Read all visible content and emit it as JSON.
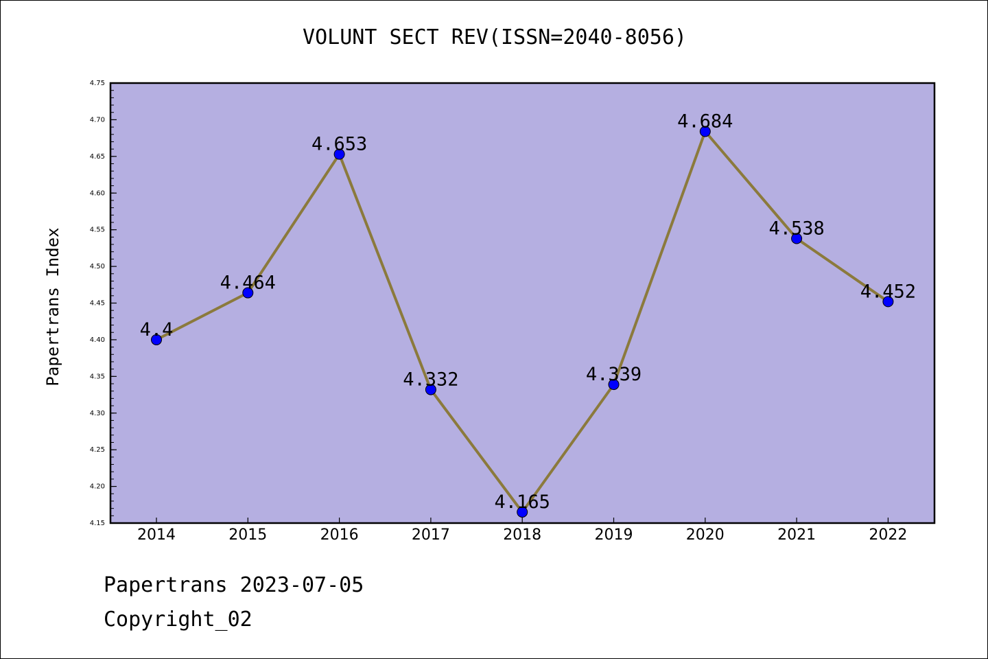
{
  "footer": {
    "date_line": "Papertrans 2023-07-05",
    "copyright": "Copyright_02"
  },
  "colors": {
    "plot_background": "#b5afe1",
    "line": "#8b7a3c",
    "marker": "#0000ff",
    "axis": "#000000"
  },
  "chart_data": {
    "type": "line",
    "title": "VOLUNT SECT REV(ISSN=2040-8056)",
    "xlabel": "",
    "ylabel": "Papertrans Index",
    "categories": [
      "2014",
      "2015",
      "2016",
      "2017",
      "2018",
      "2019",
      "2020",
      "2021",
      "2022"
    ],
    "series": [
      {
        "values": [
          4.4,
          4.464,
          4.653,
          4.332,
          4.165,
          4.339,
          4.684,
          4.538,
          4.452
        ],
        "labels": [
          "4.4",
          "4.464",
          "4.653",
          "4.332",
          "4.165",
          "4.339",
          "4.684",
          "4.538",
          "4.452"
        ]
      }
    ],
    "ylim": [
      4.15,
      4.75
    ],
    "yticks": [
      "4.15",
      "4.20",
      "4.25",
      "4.30",
      "4.35",
      "4.40",
      "4.45",
      "4.50",
      "4.55",
      "4.60",
      "4.65",
      "4.70",
      "4.75"
    ],
    "grid": false,
    "legend": "none"
  }
}
